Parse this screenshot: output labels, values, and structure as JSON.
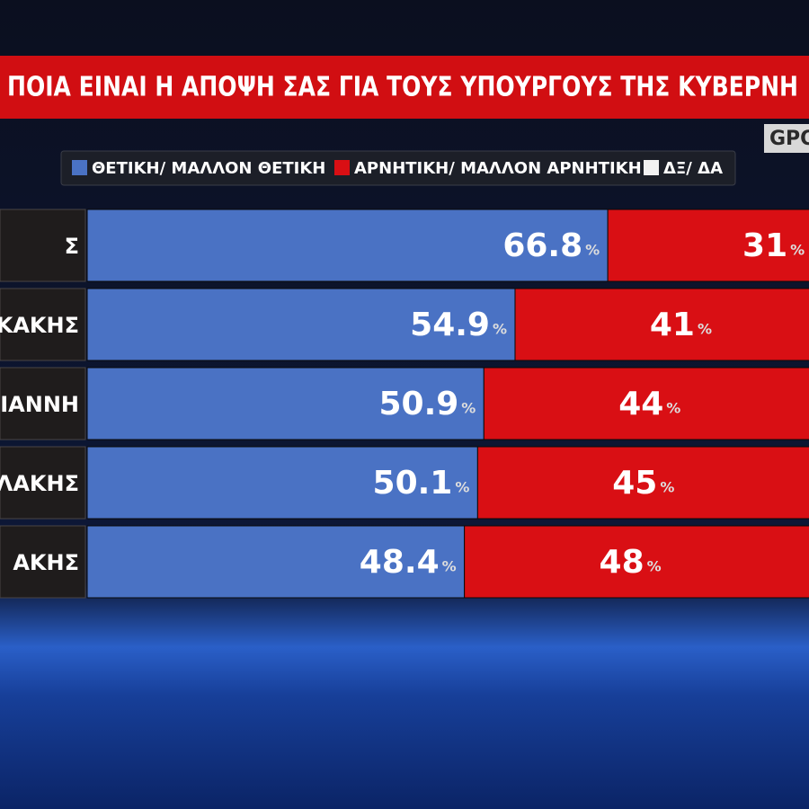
{
  "chart_data": {
    "type": "stacked-bar-horizontal",
    "title": "ΠΟΙΑ ΕΙΝΑΙ Η ΑΠΟΨΗ ΣΑΣ ΓΙΑ ΤΟΥΣ ΥΠΟΥΡΓΟΥΣ ΤΗΣ ΚΥΒΕΡΝΗ",
    "source": "GPO",
    "unit": "%",
    "categories": [
      "Σ",
      "ΚΑΚΗΣ",
      "ΟΓΙΑΝΝΗ",
      "ΛΑΚΗΣ",
      "ΑΚΗΣ"
    ],
    "xlim": [
      0,
      100
    ],
    "series": [
      {
        "name": "ΘΕΤΙΚΗ/ ΜΑΛΛΟΝ ΘΕΤΙΚΗ",
        "color": "#4a72c4",
        "values": [
          66.8,
          54.9,
          50.9,
          50.1,
          48.4
        ]
      },
      {
        "name": "ΑΡΝΗΤΙΚΗ/ ΜΑΛΛΟΝ ΑΡΝΗΤΙΚΗ",
        "color": "#d90f14",
        "values": [
          31,
          41,
          44,
          45,
          48
        ]
      },
      {
        "name": "ΔΞ/ ΔΑ",
        "color": "#f2f2f2",
        "values": [
          null,
          null,
          null,
          null,
          null
        ]
      }
    ]
  }
}
